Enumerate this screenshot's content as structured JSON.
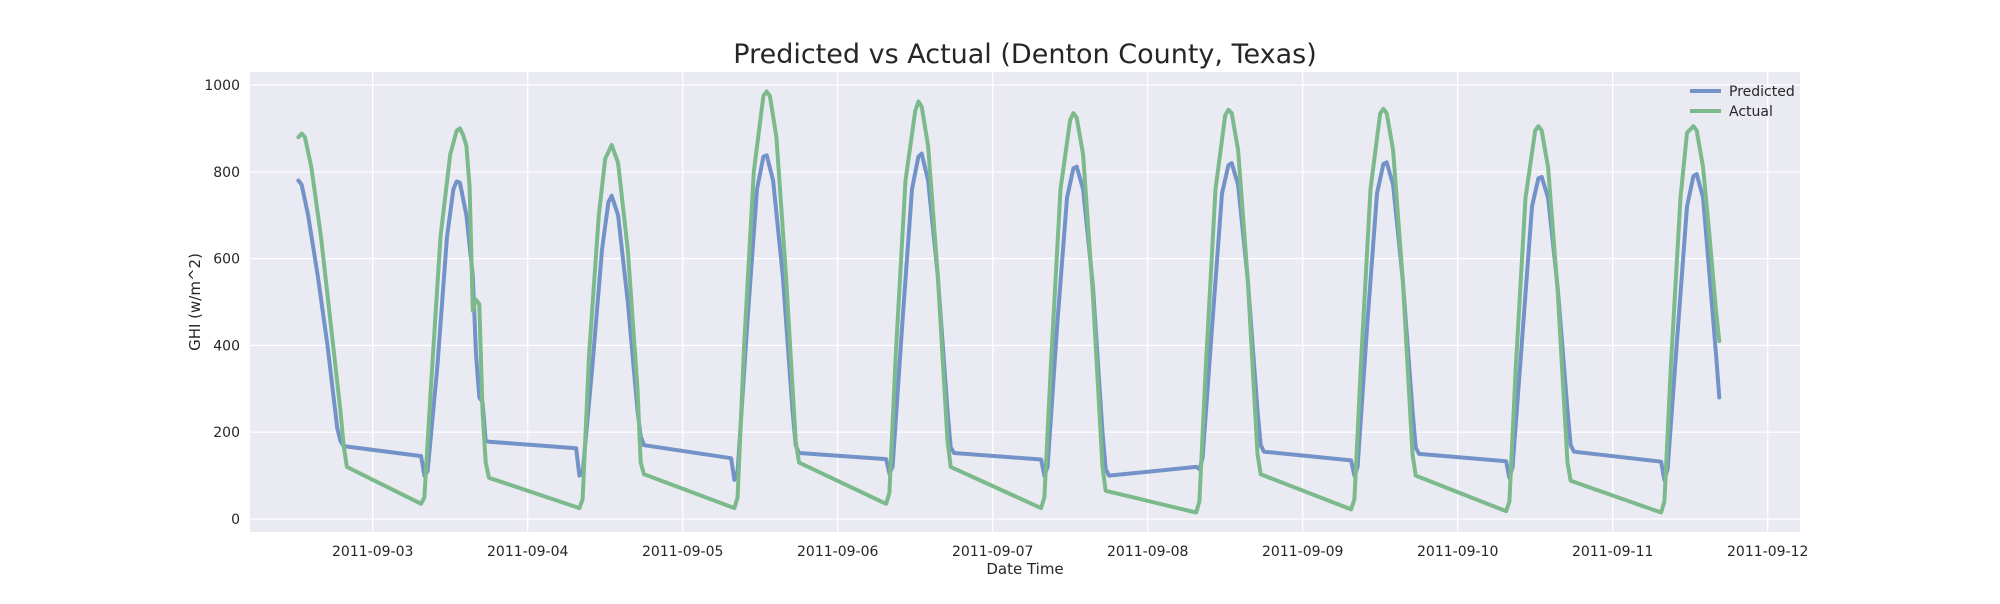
{
  "chart_data": {
    "type": "line",
    "title": "Predicted vs Actual (Denton County, Texas)",
    "xlabel": "Date Time",
    "ylabel": "GHI (w/m^2)",
    "xlim": [
      "2011-09-02T05:00",
      "2011-09-12T05:00"
    ],
    "ylim": [
      -30,
      1030
    ],
    "grid": true,
    "legend_position": "top-right",
    "colors": {
      "background": "#eaeaf2",
      "grid": "#ffffff",
      "Predicted": "#7393c8",
      "Actual": "#7cba8c"
    },
    "x_ticks": [
      "2011-09-03",
      "2011-09-04",
      "2011-09-05",
      "2011-09-06",
      "2011-09-07",
      "2011-09-08",
      "2011-09-09",
      "2011-09-10",
      "2011-09-11",
      "2011-09-12"
    ],
    "y_ticks": [
      0,
      200,
      400,
      600,
      800,
      1000
    ],
    "series": [
      {
        "name": "Predicted",
        "points": [
          [
            "2011-09-02T12:30",
            780
          ],
          [
            "2011-09-02T13:00",
            770
          ],
          [
            "2011-09-02T14:00",
            700
          ],
          [
            "2011-09-02T15:30",
            560
          ],
          [
            "2011-09-02T17:00",
            400
          ],
          [
            "2011-09-02T18:30",
            210
          ],
          [
            "2011-09-02T19:00",
            180
          ],
          [
            "2011-09-02T19:30",
            168
          ],
          [
            "2011-09-03T07:30",
            145
          ],
          [
            "2011-09-03T08:00",
            100
          ],
          [
            "2011-09-03T08:30",
            110
          ],
          [
            "2011-09-03T10:00",
            350
          ],
          [
            "2011-09-03T11:30",
            650
          ],
          [
            "2011-09-03T12:30",
            760
          ],
          [
            "2011-09-03T13:00",
            778
          ],
          [
            "2011-09-03T13:30",
            775
          ],
          [
            "2011-09-03T14:30",
            700
          ],
          [
            "2011-09-03T15:30",
            560
          ],
          [
            "2011-09-03T16:00",
            380
          ],
          [
            "2011-09-03T16:30",
            280
          ],
          [
            "2011-09-03T17:00",
            270
          ],
          [
            "2011-09-03T17:30",
            180
          ],
          [
            "2011-09-03T18:00",
            178
          ],
          [
            "2011-09-04T07:30",
            163
          ],
          [
            "2011-09-04T08:00",
            100
          ],
          [
            "2011-09-04T08:30",
            105
          ],
          [
            "2011-09-04T10:00",
            350
          ],
          [
            "2011-09-04T11:30",
            620
          ],
          [
            "2011-09-04T12:30",
            730
          ],
          [
            "2011-09-04T13:00",
            745
          ],
          [
            "2011-09-04T14:00",
            700
          ],
          [
            "2011-09-04T15:30",
            500
          ],
          [
            "2011-09-04T17:00",
            250
          ],
          [
            "2011-09-04T17:30",
            190
          ],
          [
            "2011-09-04T18:00",
            170
          ],
          [
            "2011-09-05T07:30",
            140
          ],
          [
            "2011-09-05T08:00",
            90
          ],
          [
            "2011-09-05T08:30",
            110
          ],
          [
            "2011-09-05T10:00",
            450
          ],
          [
            "2011-09-05T11:30",
            760
          ],
          [
            "2011-09-05T12:30",
            835
          ],
          [
            "2011-09-05T13:00",
            838
          ],
          [
            "2011-09-05T14:00",
            780
          ],
          [
            "2011-09-05T15:30",
            560
          ],
          [
            "2011-09-05T17:00",
            250
          ],
          [
            "2011-09-05T17:30",
            170
          ],
          [
            "2011-09-05T18:00",
            152
          ],
          [
            "2011-09-06T07:30",
            138
          ],
          [
            "2011-09-06T08:00",
            105
          ],
          [
            "2011-09-06T08:30",
            120
          ],
          [
            "2011-09-06T10:00",
            450
          ],
          [
            "2011-09-06T11:30",
            760
          ],
          [
            "2011-09-06T12:30",
            835
          ],
          [
            "2011-09-06T13:00",
            842
          ],
          [
            "2011-09-06T14:00",
            780
          ],
          [
            "2011-09-06T15:30",
            560
          ],
          [
            "2011-09-06T17:00",
            250
          ],
          [
            "2011-09-06T17:30",
            165
          ],
          [
            "2011-09-06T18:00",
            152
          ],
          [
            "2011-09-07T07:30",
            137
          ],
          [
            "2011-09-07T08:00",
            100
          ],
          [
            "2011-09-07T08:30",
            120
          ],
          [
            "2011-09-07T10:00",
            450
          ],
          [
            "2011-09-07T11:30",
            740
          ],
          [
            "2011-09-07T12:30",
            808
          ],
          [
            "2011-09-07T13:00",
            812
          ],
          [
            "2011-09-07T14:00",
            760
          ],
          [
            "2011-09-07T15:30",
            540
          ],
          [
            "2011-09-07T17:00",
            200
          ],
          [
            "2011-09-07T17:30",
            115
          ],
          [
            "2011-09-07T18:00",
            100
          ],
          [
            "2011-09-08T07:30",
            120
          ],
          [
            "2011-09-08T08:00",
            115
          ],
          [
            "2011-09-08T08:30",
            140
          ],
          [
            "2011-09-08T10:00",
            450
          ],
          [
            "2011-09-08T11:30",
            750
          ],
          [
            "2011-09-08T12:30",
            815
          ],
          [
            "2011-09-08T13:00",
            820
          ],
          [
            "2011-09-08T14:00",
            770
          ],
          [
            "2011-09-08T15:30",
            550
          ],
          [
            "2011-09-08T17:00",
            250
          ],
          [
            "2011-09-08T17:30",
            170
          ],
          [
            "2011-09-08T18:00",
            155
          ],
          [
            "2011-09-09T07:30",
            135
          ],
          [
            "2011-09-09T08:00",
            100
          ],
          [
            "2011-09-09T08:30",
            120
          ],
          [
            "2011-09-09T10:00",
            450
          ],
          [
            "2011-09-09T11:30",
            750
          ],
          [
            "2011-09-09T12:30",
            818
          ],
          [
            "2011-09-09T13:00",
            822
          ],
          [
            "2011-09-09T14:00",
            770
          ],
          [
            "2011-09-09T15:30",
            550
          ],
          [
            "2011-09-09T17:00",
            250
          ],
          [
            "2011-09-09T17:30",
            165
          ],
          [
            "2011-09-09T18:00",
            150
          ],
          [
            "2011-09-10T07:30",
            133
          ],
          [
            "2011-09-10T08:00",
            95
          ],
          [
            "2011-09-10T08:30",
            120
          ],
          [
            "2011-09-10T10:00",
            420
          ],
          [
            "2011-09-10T11:30",
            720
          ],
          [
            "2011-09-10T12:30",
            785
          ],
          [
            "2011-09-10T13:00",
            788
          ],
          [
            "2011-09-10T14:00",
            740
          ],
          [
            "2011-09-10T15:30",
            530
          ],
          [
            "2011-09-10T17:00",
            250
          ],
          [
            "2011-09-10T17:30",
            170
          ],
          [
            "2011-09-10T18:00",
            155
          ],
          [
            "2011-09-11T07:30",
            132
          ],
          [
            "2011-09-11T08:00",
            90
          ],
          [
            "2011-09-11T08:30",
            115
          ],
          [
            "2011-09-11T10:00",
            420
          ],
          [
            "2011-09-11T11:30",
            720
          ],
          [
            "2011-09-11T12:30",
            790
          ],
          [
            "2011-09-11T13:00",
            795
          ],
          [
            "2011-09-11T14:00",
            740
          ],
          [
            "2011-09-11T15:00",
            560
          ],
          [
            "2011-09-11T16:00",
            380
          ],
          [
            "2011-09-11T16:30",
            280
          ]
        ]
      },
      {
        "name": "Actual",
        "points": [
          [
            "2011-09-02T12:30",
            880
          ],
          [
            "2011-09-02T13:00",
            888
          ],
          [
            "2011-09-02T13:30",
            880
          ],
          [
            "2011-09-02T14:30",
            810
          ],
          [
            "2011-09-02T16:00",
            650
          ],
          [
            "2011-09-02T17:30",
            450
          ],
          [
            "2011-09-02T19:00",
            250
          ],
          [
            "2011-09-02T19:30",
            170
          ],
          [
            "2011-09-02T20:00",
            120
          ],
          [
            "2011-09-03T07:30",
            35
          ],
          [
            "2011-09-03T08:00",
            50
          ],
          [
            "2011-09-03T09:00",
            300
          ],
          [
            "2011-09-03T10:30",
            650
          ],
          [
            "2011-09-03T12:00",
            840
          ],
          [
            "2011-09-03T13:00",
            895
          ],
          [
            "2011-09-03T13:30",
            900
          ],
          [
            "2011-09-03T14:00",
            885
          ],
          [
            "2011-09-03T14:30",
            860
          ],
          [
            "2011-09-03T15:00",
            765
          ],
          [
            "2011-09-03T15:30",
            480
          ],
          [
            "2011-09-03T16:00",
            505
          ],
          [
            "2011-09-03T16:30",
            495
          ],
          [
            "2011-09-03T17:00",
            250
          ],
          [
            "2011-09-03T17:30",
            130
          ],
          [
            "2011-09-03T18:00",
            95
          ],
          [
            "2011-09-04T08:00",
            25
          ],
          [
            "2011-09-04T08:30",
            45
          ],
          [
            "2011-09-04T09:30",
            380
          ],
          [
            "2011-09-04T11:00",
            700
          ],
          [
            "2011-09-04T12:00",
            830
          ],
          [
            "2011-09-04T13:00",
            862
          ],
          [
            "2011-09-04T14:00",
            820
          ],
          [
            "2011-09-04T15:30",
            620
          ],
          [
            "2011-09-04T17:00",
            300
          ],
          [
            "2011-09-04T17:30",
            130
          ],
          [
            "2011-09-04T18:00",
            103
          ],
          [
            "2011-09-05T08:00",
            25
          ],
          [
            "2011-09-05T08:30",
            50
          ],
          [
            "2011-09-05T09:30",
            400
          ],
          [
            "2011-09-05T11:00",
            800
          ],
          [
            "2011-09-05T12:30",
            975
          ],
          [
            "2011-09-05T13:00",
            985
          ],
          [
            "2011-09-05T13:30",
            975
          ],
          [
            "2011-09-05T14:30",
            880
          ],
          [
            "2011-09-05T16:00",
            560
          ],
          [
            "2011-09-05T17:30",
            180
          ],
          [
            "2011-09-05T18:00",
            130
          ],
          [
            "2011-09-06T07:30",
            35
          ],
          [
            "2011-09-06T08:00",
            60
          ],
          [
            "2011-09-06T09:00",
            380
          ],
          [
            "2011-09-06T10:30",
            780
          ],
          [
            "2011-09-06T12:00",
            940
          ],
          [
            "2011-09-06T12:30",
            962
          ],
          [
            "2011-09-06T13:00",
            950
          ],
          [
            "2011-09-06T14:00",
            860
          ],
          [
            "2011-09-06T15:30",
            560
          ],
          [
            "2011-09-06T17:00",
            180
          ],
          [
            "2011-09-06T17:30",
            120
          ],
          [
            "2011-09-07T07:30",
            25
          ],
          [
            "2011-09-07T08:00",
            50
          ],
          [
            "2011-09-07T09:00",
            350
          ],
          [
            "2011-09-07T10:30",
            760
          ],
          [
            "2011-09-07T12:00",
            920
          ],
          [
            "2011-09-07T12:30",
            935
          ],
          [
            "2011-09-07T13:00",
            925
          ],
          [
            "2011-09-07T14:00",
            840
          ],
          [
            "2011-09-07T15:30",
            520
          ],
          [
            "2011-09-07T17:00",
            120
          ],
          [
            "2011-09-07T17:30",
            65
          ],
          [
            "2011-09-08T07:30",
            15
          ],
          [
            "2011-09-08T08:00",
            40
          ],
          [
            "2011-09-08T09:00",
            350
          ],
          [
            "2011-09-08T10:30",
            760
          ],
          [
            "2011-09-08T12:00",
            930
          ],
          [
            "2011-09-08T12:30",
            943
          ],
          [
            "2011-09-08T13:00",
            935
          ],
          [
            "2011-09-08T14:00",
            850
          ],
          [
            "2011-09-08T15:30",
            550
          ],
          [
            "2011-09-08T17:00",
            150
          ],
          [
            "2011-09-08T17:30",
            103
          ],
          [
            "2011-09-09T07:30",
            22
          ],
          [
            "2011-09-09T08:00",
            45
          ],
          [
            "2011-09-09T09:00",
            350
          ],
          [
            "2011-09-09T10:30",
            760
          ],
          [
            "2011-09-09T12:00",
            935
          ],
          [
            "2011-09-09T12:30",
            945
          ],
          [
            "2011-09-09T13:00",
            935
          ],
          [
            "2011-09-09T14:00",
            850
          ],
          [
            "2011-09-09T15:30",
            550
          ],
          [
            "2011-09-09T17:00",
            150
          ],
          [
            "2011-09-09T17:30",
            100
          ],
          [
            "2011-09-10T07:30",
            18
          ],
          [
            "2011-09-10T08:00",
            40
          ],
          [
            "2011-09-10T09:00",
            350
          ],
          [
            "2011-09-10T10:30",
            740
          ],
          [
            "2011-09-10T12:00",
            895
          ],
          [
            "2011-09-10T12:30",
            905
          ],
          [
            "2011-09-10T13:00",
            895
          ],
          [
            "2011-09-10T14:00",
            810
          ],
          [
            "2011-09-10T15:30",
            520
          ],
          [
            "2011-09-10T17:00",
            130
          ],
          [
            "2011-09-10T17:30",
            88
          ],
          [
            "2011-09-11T07:30",
            15
          ],
          [
            "2011-09-11T08:00",
            40
          ],
          [
            "2011-09-11T09:00",
            350
          ],
          [
            "2011-09-11T10:30",
            740
          ],
          [
            "2011-09-11T11:30",
            890
          ],
          [
            "2011-09-11T12:30",
            905
          ],
          [
            "2011-09-11T13:00",
            895
          ],
          [
            "2011-09-11T14:00",
            810
          ],
          [
            "2011-09-11T15:00",
            650
          ],
          [
            "2011-09-11T16:00",
            480
          ],
          [
            "2011-09-11T16:30",
            410
          ]
        ]
      }
    ]
  }
}
